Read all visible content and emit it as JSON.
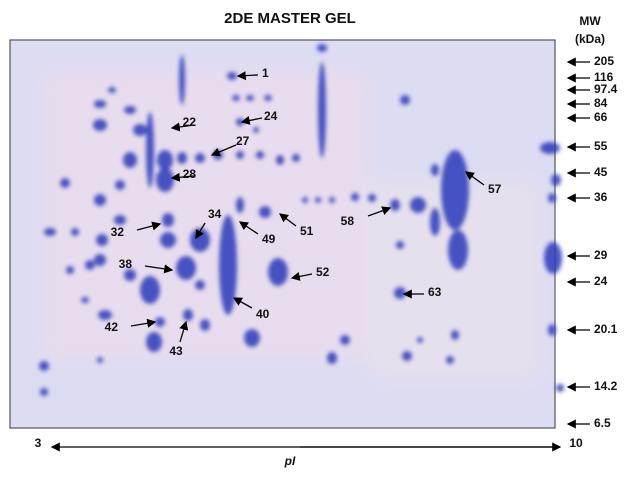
{
  "title": "2DE MASTER GEL",
  "mw_axis": {
    "title": "MW",
    "unit": "(kDa)",
    "markers": [
      "205",
      "116",
      "97.4",
      "84",
      "66",
      "55",
      "45",
      "36",
      "29",
      "24",
      "20.1",
      "14.2",
      "6.5"
    ]
  },
  "pi_axis": {
    "start": "3",
    "end": "10",
    "label": "pI"
  },
  "spot_labels": [
    "1",
    "22",
    "24",
    "27",
    "28",
    "32",
    "34",
    "38",
    "40",
    "42",
    "43",
    "49",
    "51",
    "52",
    "57",
    "58",
    "63"
  ]
}
